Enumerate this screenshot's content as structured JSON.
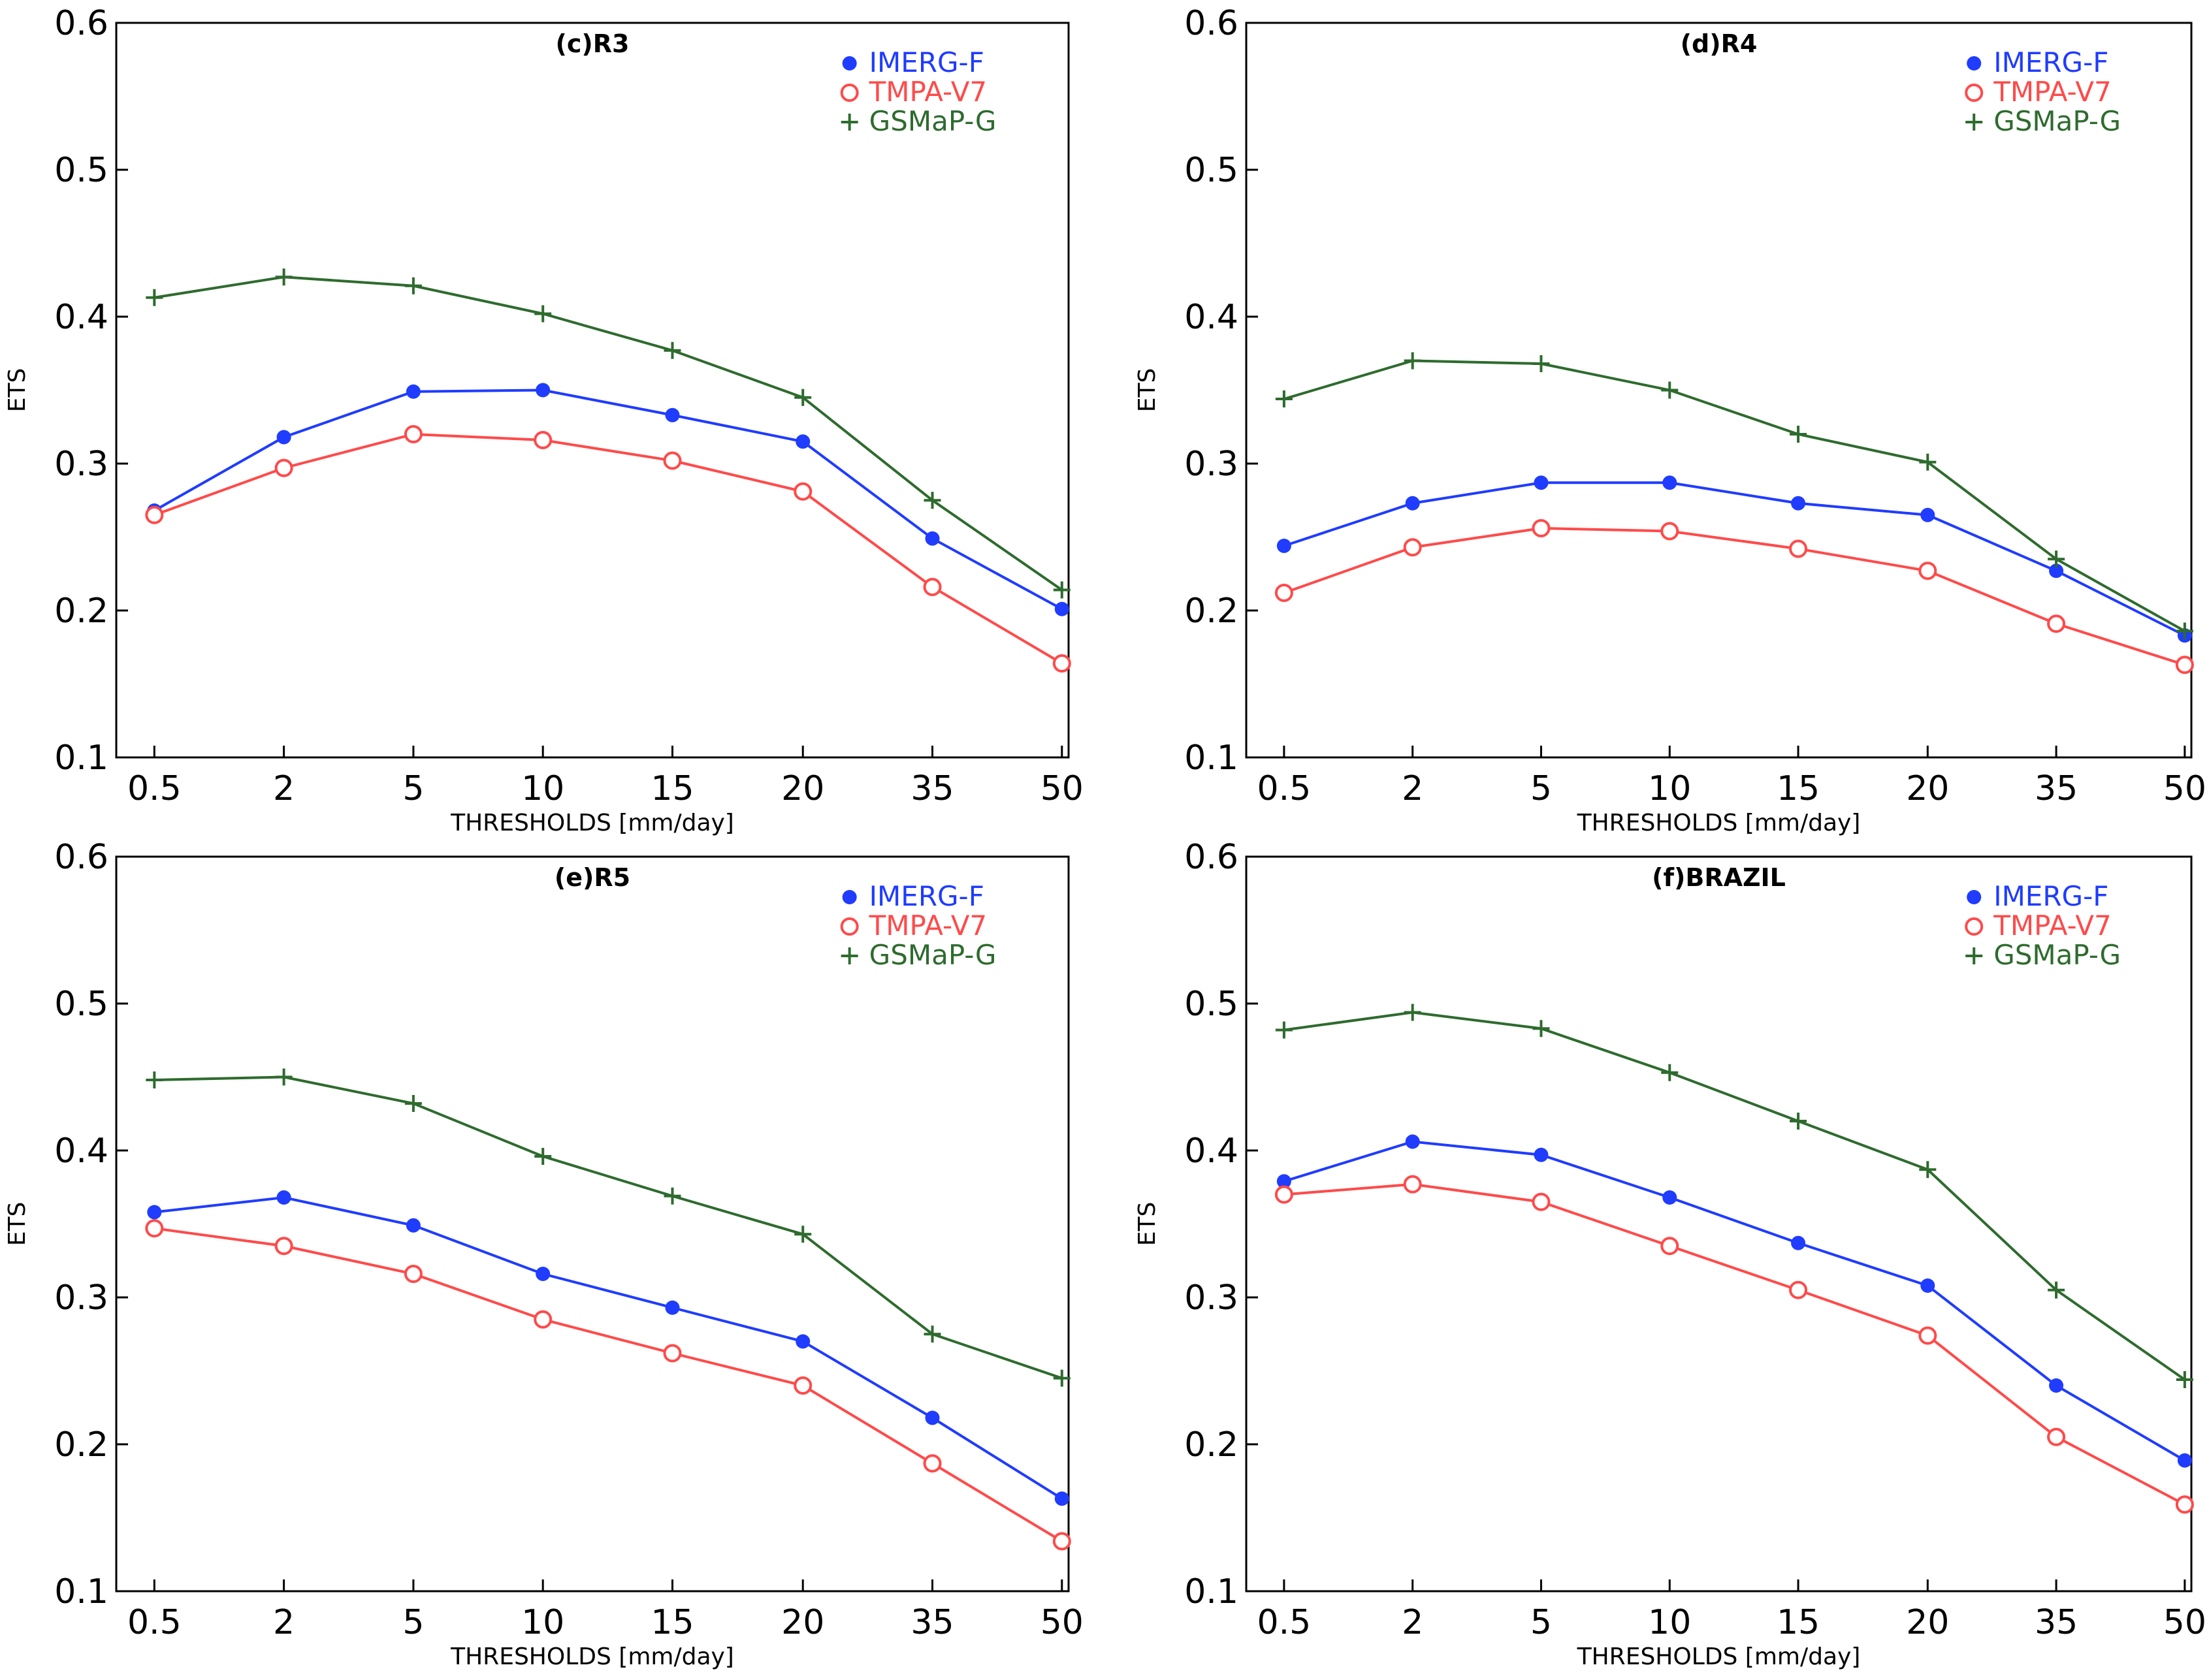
{
  "chart_data": [
    {
      "type": "line",
      "title": "(c)R3",
      "xlabel": "THRESHOLDS [mm/day]",
      "ylabel": "ETS",
      "categories": [
        "0.5",
        "2",
        "5",
        "10",
        "15",
        "20",
        "35",
        "50"
      ],
      "ylim": [
        0.1,
        0.6
      ],
      "yticks": [
        "0.1",
        "0.2",
        "0.3",
        "0.4",
        "0.5",
        "0.6"
      ],
      "legend_position": "top-right",
      "series": [
        {
          "name": "IMERG-F",
          "color": "#1f3cff",
          "marker": "filled-circle",
          "values": [
            0.268,
            0.318,
            0.349,
            0.35,
            0.333,
            0.315,
            0.249,
            0.201
          ]
        },
        {
          "name": "TMPA-V7",
          "color": "#ff4a4a",
          "marker": "open-circle",
          "values": [
            0.265,
            0.297,
            0.32,
            0.316,
            0.302,
            0.281,
            0.216,
            0.164
          ]
        },
        {
          "name": "GSMaP-G",
          "color": "#2e6b2e",
          "marker": "plus",
          "values": [
            0.413,
            0.427,
            0.421,
            0.402,
            0.377,
            0.345,
            0.275,
            0.214
          ]
        }
      ]
    },
    {
      "type": "line",
      "title": "(d)R4",
      "xlabel": "THRESHOLDS [mm/day]",
      "ylabel": "ETS",
      "categories": [
        "0.5",
        "2",
        "5",
        "10",
        "15",
        "20",
        "35",
        "50"
      ],
      "ylim": [
        0.1,
        0.6
      ],
      "yticks": [
        "0.1",
        "0.2",
        "0.3",
        "0.4",
        "0.5",
        "0.6"
      ],
      "legend_position": "top-right",
      "series": [
        {
          "name": "IMERG-F",
          "color": "#1f3cff",
          "marker": "filled-circle",
          "values": [
            0.244,
            0.273,
            0.287,
            0.287,
            0.273,
            0.265,
            0.227,
            0.183
          ]
        },
        {
          "name": "TMPA-V7",
          "color": "#ff4a4a",
          "marker": "open-circle",
          "values": [
            0.212,
            0.243,
            0.256,
            0.254,
            0.242,
            0.227,
            0.191,
            0.163
          ]
        },
        {
          "name": "GSMaP-G",
          "color": "#2e6b2e",
          "marker": "plus",
          "values": [
            0.344,
            0.37,
            0.368,
            0.35,
            0.32,
            0.301,
            0.235,
            0.186
          ]
        }
      ]
    },
    {
      "type": "line",
      "title": "(e)R5",
      "xlabel": "THRESHOLDS [mm/day]",
      "ylabel": "ETS",
      "categories": [
        "0.5",
        "2",
        "5",
        "10",
        "15",
        "20",
        "35",
        "50"
      ],
      "ylim": [
        0.1,
        0.6
      ],
      "yticks": [
        "0.1",
        "0.2",
        "0.3",
        "0.4",
        "0.5",
        "0.6"
      ],
      "legend_position": "top-right",
      "series": [
        {
          "name": "IMERG-F",
          "color": "#1f3cff",
          "marker": "filled-circle",
          "values": [
            0.358,
            0.368,
            0.349,
            0.316,
            0.293,
            0.27,
            0.218,
            0.163
          ]
        },
        {
          "name": "TMPA-V7",
          "color": "#ff4a4a",
          "marker": "open-circle",
          "values": [
            0.347,
            0.335,
            0.316,
            0.285,
            0.262,
            0.24,
            0.187,
            0.134
          ]
        },
        {
          "name": "GSMaP-G",
          "color": "#2e6b2e",
          "marker": "plus",
          "values": [
            0.448,
            0.45,
            0.432,
            0.396,
            0.369,
            0.343,
            0.275,
            0.245
          ]
        }
      ]
    },
    {
      "type": "line",
      "title": "(f)BRAZIL",
      "xlabel": "THRESHOLDS [mm/day]",
      "ylabel": "ETS",
      "categories": [
        "0.5",
        "2",
        "5",
        "10",
        "15",
        "20",
        "35",
        "50"
      ],
      "ylim": [
        0.1,
        0.6
      ],
      "yticks": [
        "0.1",
        "0.2",
        "0.3",
        "0.4",
        "0.5",
        "0.6"
      ],
      "legend_position": "top-right",
      "series": [
        {
          "name": "IMERG-F",
          "color": "#1f3cff",
          "marker": "filled-circle",
          "values": [
            0.379,
            0.406,
            0.397,
            0.368,
            0.337,
            0.308,
            0.24,
            0.189
          ]
        },
        {
          "name": "TMPA-V7",
          "color": "#ff4a4a",
          "marker": "open-circle",
          "values": [
            0.37,
            0.377,
            0.365,
            0.335,
            0.305,
            0.274,
            0.205,
            0.159
          ]
        },
        {
          "name": "GSMaP-G",
          "color": "#2e6b2e",
          "marker": "plus",
          "values": [
            0.482,
            0.494,
            0.483,
            0.453,
            0.42,
            0.387,
            0.305,
            0.244
          ]
        }
      ]
    }
  ]
}
